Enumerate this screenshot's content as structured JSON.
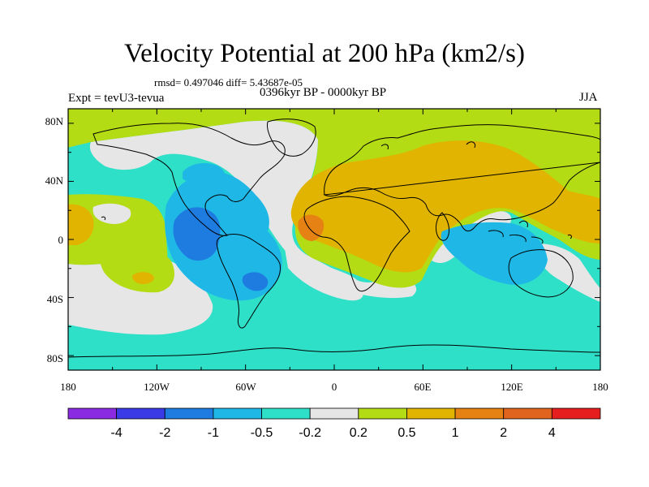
{
  "title": "Velocity Potential at 200 hPa (km2/s)",
  "stats": "rmsd= 0.497046 diff= 5.43687e-05",
  "experiment": "Expt = tevU3-tevua",
  "period": "0396kyr BP - 0000kyr BP",
  "season": "JJA",
  "axes": {
    "lon_labels": [
      "180",
      "120W",
      "60W",
      "0",
      "60E",
      "120E",
      "180"
    ],
    "lat_labels": [
      "80N",
      "40N",
      "0",
      "40S",
      "80S"
    ]
  },
  "colorbar": {
    "colors": [
      "#8a2be2",
      "#3a3ae6",
      "#1e7be0",
      "#1fb8e6",
      "#2ee0c8",
      "#e6e6e6",
      "#b4dc14",
      "#e0b400",
      "#e68214",
      "#e0641e",
      "#e61e1e"
    ],
    "labels": [
      "-4",
      "-2",
      "-1",
      "-0.5",
      "-0.2",
      "0.2",
      "0.5",
      "1",
      "2",
      "4"
    ]
  },
  "field_colors": {
    "very_neg": "#1e7be0",
    "neg": "#1fb8e6",
    "slight_neg": "#2ee0c8",
    "neutral": "#e6e6e6",
    "slight_pos": "#b4dc14",
    "pos": "#e0b400",
    "strong_pos": "#e68214"
  }
}
